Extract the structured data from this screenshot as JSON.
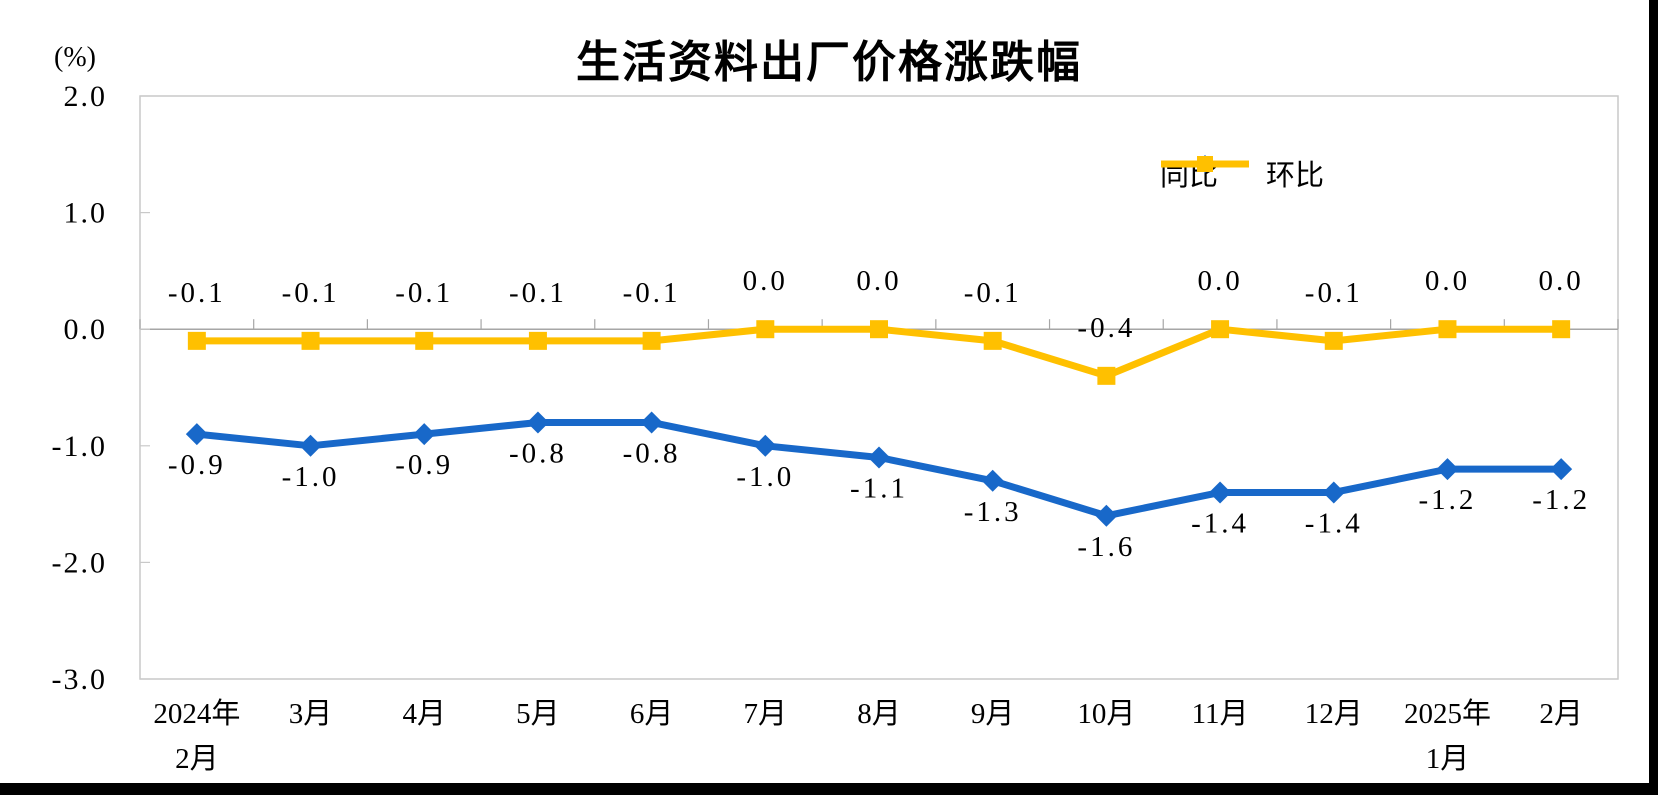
{
  "window": {
    "background_color": "#ffffff",
    "edge_bar_color": "#000000"
  },
  "chart_data": {
    "type": "line",
    "title": "生活资料出厂价格涨跌幅",
    "ylabel": "(%)",
    "xlabel": "",
    "ylim": [
      -3.0,
      2.0
    ],
    "ytick_labels": [
      "2.0",
      "1.0",
      "0.0",
      "-1.0",
      "-2.0",
      "-3.0"
    ],
    "ytick_values": [
      2.0,
      1.0,
      0.0,
      -1.0,
      -2.0,
      -3.0
    ],
    "grid": false,
    "legend_position": "top-right",
    "categories": [
      [
        "2024年",
        "2月"
      ],
      [
        "3月"
      ],
      [
        "4月"
      ],
      [
        "5月"
      ],
      [
        "6月"
      ],
      [
        "7月"
      ],
      [
        "8月"
      ],
      [
        "9月"
      ],
      [
        "10月"
      ],
      [
        "11月"
      ],
      [
        "12月"
      ],
      [
        "2025年",
        "1月"
      ],
      [
        "2月"
      ]
    ],
    "series": [
      {
        "name": "同比",
        "marker": "diamond",
        "color": "#1868C9",
        "label_position": "below",
        "values": [
          -0.9,
          -1.0,
          -0.9,
          -0.8,
          -0.8,
          -1.0,
          -1.1,
          -1.3,
          -1.6,
          -1.4,
          -1.4,
          -1.2,
          -1.2
        ],
        "labels": [
          "-0.9",
          "-1.0",
          "-0.9",
          "-0.8",
          "-0.8",
          "-1.0",
          "-1.1",
          "-1.3",
          "-1.6",
          "-1.4",
          "-1.4",
          "-1.2",
          "-1.2"
        ]
      },
      {
        "name": "环比",
        "marker": "square",
        "color": "#FFC000",
        "label_position": "above",
        "values": [
          -0.1,
          -0.1,
          -0.1,
          -0.1,
          -0.1,
          0.0,
          0.0,
          -0.1,
          -0.4,
          0.0,
          -0.1,
          0.0,
          0.0
        ],
        "labels": [
          "-0.1",
          "-0.1",
          "-0.1",
          "-0.1",
          "-0.1",
          "0.0",
          "0.0",
          "-0.1",
          "-0.4",
          "0.0",
          "-0.1",
          "0.0",
          "0.0"
        ]
      }
    ],
    "axis_color": "#A6A6A6",
    "border_color": "#C9C9C9",
    "text_color": "#000000"
  }
}
